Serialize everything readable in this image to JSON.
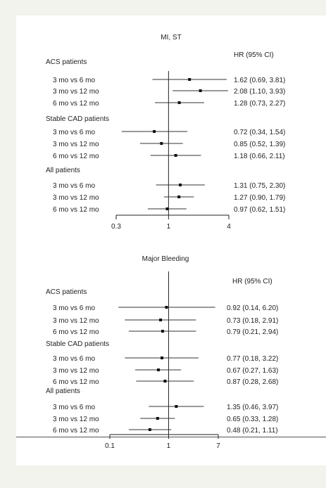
{
  "chart_data": [
    {
      "type": "forest",
      "title": "MI, ST",
      "column_header": "HR (95% CI)",
      "xscale": "log",
      "xlim": [
        0.3,
        4
      ],
      "xticks": [
        0.3,
        1,
        4
      ],
      "xtick_labels": [
        "0.3",
        "1",
        "4"
      ],
      "reference_line": 1,
      "groups": [
        {
          "label": "ACS patients",
          "rows": [
            {
              "label": "3 mo vs 6 mo",
              "hr": 1.62,
              "lo": 0.69,
              "hi": 3.81,
              "text": "1.62 (0.69, 3.81)"
            },
            {
              "label": "3 mo vs 12 mo",
              "hr": 2.08,
              "lo": 1.1,
              "hi": 3.93,
              "text": "2.08 (1.10, 3.93)"
            },
            {
              "label": "6 mo vs 12 mo",
              "hr": 1.28,
              "lo": 0.73,
              "hi": 2.27,
              "text": "1.28 (0.73, 2.27)"
            }
          ]
        },
        {
          "label": "Stable CAD patients",
          "rows": [
            {
              "label": "3 mo vs 6 mo",
              "hr": 0.72,
              "lo": 0.34,
              "hi": 1.54,
              "text": "0.72 (0.34, 1.54)"
            },
            {
              "label": "3 mo vs 12 mo",
              "hr": 0.85,
              "lo": 0.52,
              "hi": 1.39,
              "text": "0.85 (0.52, 1.39)"
            },
            {
              "label": "6 mo vs 12 mo",
              "hr": 1.18,
              "lo": 0.66,
              "hi": 2.11,
              "text": "1.18 (0.66, 2.11)"
            }
          ]
        },
        {
          "label": "All patients",
          "rows": [
            {
              "label": "3 mo vs 6 mo",
              "hr": 1.31,
              "lo": 0.75,
              "hi": 2.3,
              "text": "1.31 (0.75, 2.30)"
            },
            {
              "label": "3 mo vs 12 mo",
              "hr": 1.27,
              "lo": 0.9,
              "hi": 1.79,
              "text": "1.27 (0.90, 1.79)"
            },
            {
              "label": "6 mo vs 12 mo",
              "hr": 0.97,
              "lo": 0.62,
              "hi": 1.51,
              "text": "0.97 (0.62, 1.51)"
            }
          ]
        }
      ]
    },
    {
      "type": "forest",
      "title": "Major Bleeding",
      "column_header": "HR (95% CI)",
      "xscale": "log",
      "xlim": [
        0.1,
        7
      ],
      "xticks": [
        0.1,
        1,
        7
      ],
      "xtick_labels": [
        "0.1",
        "1",
        "7"
      ],
      "reference_line": 1,
      "groups": [
        {
          "label": "ACS patients",
          "rows": [
            {
              "label": "3 mo vs 6 mo",
              "hr": 0.92,
              "lo": 0.14,
              "hi": 6.2,
              "text": "0.92 (0.14, 6.20)"
            },
            {
              "label": "3 mo vs 12 mo",
              "hr": 0.73,
              "lo": 0.18,
              "hi": 2.91,
              "text": "0.73 (0.18, 2.91)"
            },
            {
              "label": "6 mo vs 12 mo",
              "hr": 0.79,
              "lo": 0.21,
              "hi": 2.94,
              "text": "0.79 (0.21, 2.94)"
            }
          ]
        },
        {
          "label": "Stable CAD patients",
          "rows": [
            {
              "label": "3 mo vs 6 mo",
              "hr": 0.77,
              "lo": 0.18,
              "hi": 3.22,
              "text": "0.77 (0.18, 3.22)"
            },
            {
              "label": "3 mo vs 12 mo",
              "hr": 0.67,
              "lo": 0.27,
              "hi": 1.63,
              "text": "0.67 (0.27, 1.63)"
            },
            {
              "label": "6 mo vs 12 mo",
              "hr": 0.87,
              "lo": 0.28,
              "hi": 2.68,
              "text": "0.87 (0.28, 2.68)"
            }
          ]
        },
        {
          "label": "All patients",
          "rows": [
            {
              "label": "3 mo vs 6 mo",
              "hr": 1.35,
              "lo": 0.46,
              "hi": 3.97,
              "text": "1.35 (0.46, 3.97)"
            },
            {
              "label": "3 mo vs 12 mo",
              "hr": 0.65,
              "lo": 0.33,
              "hi": 1.28,
              "text": "0.65 (0.33, 1.28)"
            },
            {
              "label": "6 mo vs 12 mo",
              "hr": 0.48,
              "lo": 0.21,
              "hi": 1.11,
              "text": "0.48 (0.21, 1.11)"
            }
          ]
        }
      ]
    }
  ]
}
